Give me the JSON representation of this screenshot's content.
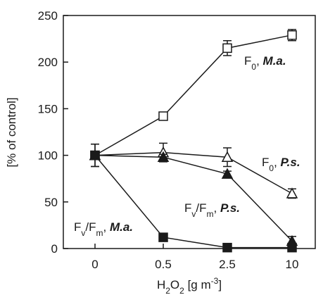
{
  "chart_data": {
    "type": "line",
    "categories": [
      "0",
      "0.5",
      "2.5",
      "10"
    ],
    "xlabel": {
      "base": "H",
      "sub": "2",
      "mid": "O",
      "sub2": "2",
      "rest": " [g m",
      "sup": "-3",
      "end": "]"
    },
    "ylabel": "[% of control]",
    "ylim": [
      0,
      250
    ],
    "yticks": [
      "0",
      "50",
      "100",
      "150",
      "200",
      "250"
    ],
    "grid": false,
    "legend": "none",
    "series": [
      {
        "name": "F0, M.a.",
        "marker": "open-square",
        "values": [
          100,
          142,
          215,
          229
        ],
        "errors": [
          12,
          3,
          8,
          6
        ]
      },
      {
        "name": "F0, P.s.",
        "marker": "open-triangle",
        "values": [
          100,
          103,
          98,
          59
        ],
        "errors": [
          12,
          10,
          10,
          5
        ]
      },
      {
        "name": "Fv/Fm, P.s.",
        "marker": "filled-triangle",
        "values": [
          100,
          98,
          80,
          8
        ],
        "errors": [
          3,
          3,
          3,
          5
        ]
      },
      {
        "name": "Fv/Fm, M.a.",
        "marker": "filled-square",
        "values": [
          100,
          12,
          1,
          1
        ],
        "errors": [
          3,
          2,
          1,
          4
        ]
      }
    ],
    "annotations": [
      {
        "id": "f0-ma",
        "main": "F",
        "sub": "0",
        "sep": ", ",
        "species": "M.a."
      },
      {
        "id": "f0-ps",
        "main": "F",
        "sub": "0",
        "sep": ", ",
        "species": "P.s."
      },
      {
        "id": "fvfm-ps",
        "main": "F",
        "sub": "v",
        "mid": "/F",
        "sub2": "m",
        "sep": ", ",
        "species": "P.s."
      },
      {
        "id": "fvfm-ma",
        "main": "F",
        "sub": "v",
        "mid": "/F",
        "sub2": "m",
        "sep": ", ",
        "species": "M.a."
      }
    ]
  }
}
